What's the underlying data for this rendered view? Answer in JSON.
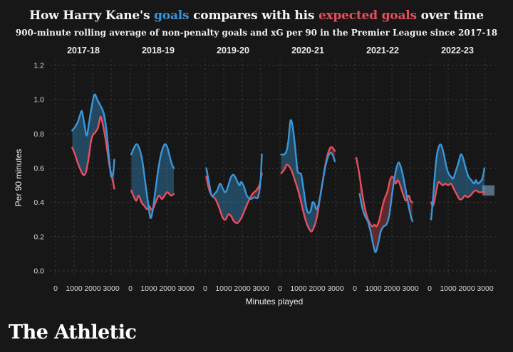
{
  "header": {
    "title_part1": "How Harry Kane's ",
    "title_goals_word": "goals",
    "title_part2": " compares with his ",
    "title_xg_word": "expected goals",
    "title_part3": " over time",
    "subtitle": "900-minute rolling average of non-penalty goals and xG per 90 in the Premier League since 2017-18"
  },
  "footer": {
    "logo_text": "The Athletic"
  },
  "colors": {
    "background": "#171717",
    "grid": "#3a3a3a",
    "goals_line": "#3a96d8",
    "xg_line": "#e84f5c",
    "goals_fill": "rgba(58,150,216,0.38)",
    "xg_fill": "rgba(232,79,92,0.34)",
    "tick_text": "#d9d9d9",
    "facet_text": "#eeeeee",
    "axis_title_text": "#f0f0f0"
  },
  "chart_data": {
    "type": "area",
    "title": "How Harry Kane's goals compares with his expected goals over time",
    "subtitle": "900-minute rolling average of non-penalty goals and xG per 90 in the Premier League since 2017-18",
    "xlabel": "Minutes played",
    "ylabel": "Per 90 minutes",
    "ylim": [
      0,
      1.2
    ],
    "y_ticks": [
      "1.2",
      "1.0",
      "0.8",
      "0.6",
      "0.4",
      "0.2",
      "0.0"
    ],
    "y_tick_values": [
      1.2,
      1.0,
      0.8,
      0.6,
      0.4,
      0.2,
      0.0
    ],
    "x_ticks": [
      "0",
      "1000",
      "2000",
      "3000"
    ],
    "x_tick_values": [
      0,
      1000,
      2000,
      3000
    ],
    "grid": "dashed",
    "series_legend": [
      {
        "name": "goals",
        "color": "#3a96d8"
      },
      {
        "name": "expected goals (xG)",
        "color": "#e84f5c"
      }
    ],
    "facets": [
      {
        "season": "2017-18",
        "goals": [
          [
            900,
            0.82
          ],
          [
            1050,
            0.84
          ],
          [
            1200,
            0.87
          ],
          [
            1350,
            0.92
          ],
          [
            1430,
            0.93
          ],
          [
            1550,
            0.86
          ],
          [
            1680,
            0.79
          ],
          [
            1800,
            0.86
          ],
          [
            1950,
            0.96
          ],
          [
            2100,
            1.03
          ],
          [
            2250,
            1.0
          ],
          [
            2400,
            0.97
          ],
          [
            2600,
            0.92
          ],
          [
            2750,
            0.82
          ],
          [
            2870,
            0.68
          ],
          [
            2970,
            0.57
          ],
          [
            3040,
            0.55
          ],
          [
            3120,
            0.58
          ],
          [
            3170,
            0.65
          ]
        ],
        "xg": [
          [
            900,
            0.72
          ],
          [
            1050,
            0.68
          ],
          [
            1200,
            0.63
          ],
          [
            1350,
            0.59
          ],
          [
            1500,
            0.56
          ],
          [
            1650,
            0.58
          ],
          [
            1800,
            0.67
          ],
          [
            1900,
            0.75
          ],
          [
            2000,
            0.79
          ],
          [
            2150,
            0.81
          ],
          [
            2300,
            0.84
          ],
          [
            2420,
            0.9
          ],
          [
            2520,
            0.87
          ],
          [
            2650,
            0.8
          ],
          [
            2780,
            0.71
          ],
          [
            2900,
            0.62
          ],
          [
            3000,
            0.57
          ],
          [
            3100,
            0.52
          ],
          [
            3170,
            0.48
          ]
        ]
      },
      {
        "season": "2018-19",
        "goals": [
          [
            50,
            0.68
          ],
          [
            200,
            0.72
          ],
          [
            350,
            0.74
          ],
          [
            500,
            0.71
          ],
          [
            650,
            0.64
          ],
          [
            800,
            0.52
          ],
          [
            950,
            0.4
          ],
          [
            1080,
            0.31
          ],
          [
            1200,
            0.35
          ],
          [
            1350,
            0.47
          ],
          [
            1500,
            0.59
          ],
          [
            1650,
            0.68
          ],
          [
            1800,
            0.73
          ],
          [
            1900,
            0.74
          ],
          [
            2000,
            0.72
          ],
          [
            2120,
            0.67
          ],
          [
            2250,
            0.62
          ],
          [
            2350,
            0.6
          ]
        ],
        "xg": [
          [
            50,
            0.47
          ],
          [
            200,
            0.43
          ],
          [
            320,
            0.41
          ],
          [
            450,
            0.44
          ],
          [
            600,
            0.4
          ],
          [
            750,
            0.38
          ],
          [
            900,
            0.36
          ],
          [
            1020,
            0.38
          ],
          [
            1120,
            0.36
          ],
          [
            1250,
            0.37
          ],
          [
            1400,
            0.41
          ],
          [
            1550,
            0.44
          ],
          [
            1700,
            0.42
          ],
          [
            1850,
            0.44
          ],
          [
            2000,
            0.46
          ],
          [
            2180,
            0.44
          ],
          [
            2350,
            0.45
          ]
        ]
      },
      {
        "season": "2019-20",
        "goals": [
          [
            60,
            0.6
          ],
          [
            200,
            0.52
          ],
          [
            350,
            0.44
          ],
          [
            500,
            0.45
          ],
          [
            650,
            0.47
          ],
          [
            800,
            0.51
          ],
          [
            950,
            0.48
          ],
          [
            1100,
            0.46
          ],
          [
            1250,
            0.5
          ],
          [
            1400,
            0.55
          ],
          [
            1550,
            0.56
          ],
          [
            1700,
            0.53
          ],
          [
            1850,
            0.5
          ],
          [
            1950,
            0.52
          ],
          [
            2100,
            0.49
          ],
          [
            2250,
            0.44
          ],
          [
            2450,
            0.42
          ],
          [
            2650,
            0.43
          ],
          [
            2850,
            0.43
          ],
          [
            2980,
            0.52
          ],
          [
            3060,
            0.68
          ]
        ],
        "xg": [
          [
            60,
            0.55
          ],
          [
            200,
            0.48
          ],
          [
            350,
            0.44
          ],
          [
            550,
            0.42
          ],
          [
            750,
            0.37
          ],
          [
            950,
            0.31
          ],
          [
            1100,
            0.3
          ],
          [
            1250,
            0.33
          ],
          [
            1400,
            0.32
          ],
          [
            1550,
            0.29
          ],
          [
            1750,
            0.28
          ],
          [
            1950,
            0.31
          ],
          [
            2150,
            0.36
          ],
          [
            2350,
            0.41
          ],
          [
            2550,
            0.45
          ],
          [
            2750,
            0.47
          ],
          [
            2920,
            0.5
          ],
          [
            3060,
            0.57
          ]
        ]
      },
      {
        "season": "2020-21",
        "goals": [
          [
            60,
            0.68
          ],
          [
            220,
            0.68
          ],
          [
            350,
            0.7
          ],
          [
            450,
            0.76
          ],
          [
            540,
            0.86
          ],
          [
            600,
            0.88
          ],
          [
            700,
            0.83
          ],
          [
            800,
            0.74
          ],
          [
            880,
            0.65
          ],
          [
            950,
            0.58
          ],
          [
            1050,
            0.57
          ],
          [
            1150,
            0.56
          ],
          [
            1280,
            0.47
          ],
          [
            1400,
            0.38
          ],
          [
            1520,
            0.34
          ],
          [
            1650,
            0.35
          ],
          [
            1760,
            0.4
          ],
          [
            1870,
            0.39
          ],
          [
            1960,
            0.36
          ],
          [
            2060,
            0.38
          ],
          [
            2160,
            0.43
          ],
          [
            2300,
            0.52
          ],
          [
            2450,
            0.61
          ],
          [
            2600,
            0.67
          ],
          [
            2750,
            0.69
          ],
          [
            2870,
            0.67
          ],
          [
            2960,
            0.64
          ]
        ],
        "xg": [
          [
            60,
            0.57
          ],
          [
            220,
            0.59
          ],
          [
            360,
            0.62
          ],
          [
            500,
            0.61
          ],
          [
            650,
            0.58
          ],
          [
            800,
            0.53
          ],
          [
            950,
            0.48
          ],
          [
            1100,
            0.42
          ],
          [
            1250,
            0.35
          ],
          [
            1400,
            0.29
          ],
          [
            1550,
            0.25
          ],
          [
            1700,
            0.23
          ],
          [
            1850,
            0.26
          ],
          [
            2000,
            0.32
          ],
          [
            2150,
            0.42
          ],
          [
            2300,
            0.52
          ],
          [
            2450,
            0.62
          ],
          [
            2600,
            0.69
          ],
          [
            2720,
            0.72
          ],
          [
            2830,
            0.72
          ],
          [
            2960,
            0.7
          ]
        ]
      },
      {
        "season": "2021-22",
        "goals": [
          [
            260,
            0.45
          ],
          [
            400,
            0.37
          ],
          [
            550,
            0.32
          ],
          [
            700,
            0.29
          ],
          [
            850,
            0.23
          ],
          [
            1000,
            0.15
          ],
          [
            1130,
            0.11
          ],
          [
            1280,
            0.17
          ],
          [
            1400,
            0.23
          ],
          [
            1550,
            0.26
          ],
          [
            1700,
            0.27
          ],
          [
            1850,
            0.32
          ],
          [
            2000,
            0.44
          ],
          [
            2150,
            0.55
          ],
          [
            2300,
            0.62
          ],
          [
            2400,
            0.63
          ],
          [
            2550,
            0.58
          ],
          [
            2700,
            0.5
          ],
          [
            2850,
            0.41
          ],
          [
            3000,
            0.33
          ],
          [
            3110,
            0.29
          ]
        ],
        "xg": [
          [
            80,
            0.66
          ],
          [
            220,
            0.58
          ],
          [
            360,
            0.48
          ],
          [
            500,
            0.39
          ],
          [
            650,
            0.32
          ],
          [
            800,
            0.28
          ],
          [
            950,
            0.26
          ],
          [
            1060,
            0.27
          ],
          [
            1160,
            0.26
          ],
          [
            1300,
            0.29
          ],
          [
            1450,
            0.36
          ],
          [
            1600,
            0.42
          ],
          [
            1750,
            0.46
          ],
          [
            1900,
            0.53
          ],
          [
            2000,
            0.55
          ],
          [
            2100,
            0.54
          ],
          [
            2200,
            0.51
          ],
          [
            2320,
            0.53
          ],
          [
            2450,
            0.5
          ],
          [
            2600,
            0.45
          ],
          [
            2750,
            0.41
          ],
          [
            2900,
            0.44
          ],
          [
            3010,
            0.41
          ],
          [
            3110,
            0.4
          ]
        ]
      },
      {
        "season": "2022-23",
        "goals": [
          [
            80,
            0.3
          ],
          [
            180,
            0.42
          ],
          [
            280,
            0.56
          ],
          [
            380,
            0.67
          ],
          [
            480,
            0.72
          ],
          [
            580,
            0.74
          ],
          [
            680,
            0.72
          ],
          [
            790,
            0.67
          ],
          [
            900,
            0.61
          ],
          [
            1020,
            0.57
          ],
          [
            1150,
            0.55
          ],
          [
            1270,
            0.54
          ],
          [
            1400,
            0.58
          ],
          [
            1550,
            0.63
          ],
          [
            1680,
            0.68
          ],
          [
            1800,
            0.66
          ],
          [
            1950,
            0.6
          ],
          [
            2100,
            0.55
          ],
          [
            2250,
            0.53
          ],
          [
            2400,
            0.51
          ],
          [
            2500,
            0.53
          ],
          [
            2600,
            0.51
          ],
          [
            2720,
            0.52
          ],
          [
            2850,
            0.54
          ],
          [
            2960,
            0.6
          ]
        ],
        "xg": [
          [
            80,
            0.4
          ],
          [
            180,
            0.38
          ],
          [
            280,
            0.42
          ],
          [
            380,
            0.48
          ],
          [
            480,
            0.52
          ],
          [
            600,
            0.51
          ],
          [
            720,
            0.5
          ],
          [
            850,
            0.51
          ],
          [
            1000,
            0.5
          ],
          [
            1150,
            0.51
          ],
          [
            1300,
            0.48
          ],
          [
            1450,
            0.45
          ],
          [
            1600,
            0.42
          ],
          [
            1750,
            0.42
          ],
          [
            1900,
            0.44
          ],
          [
            2050,
            0.43
          ],
          [
            2200,
            0.44
          ],
          [
            2350,
            0.46
          ],
          [
            2500,
            0.47
          ],
          [
            2650,
            0.46
          ],
          [
            2800,
            0.46
          ],
          [
            2960,
            0.46
          ]
        ]
      }
    ],
    "annotations": [
      {
        "facet": "2022-23",
        "type": "highlight-box",
        "x_min": 2850,
        "x_max": 3500,
        "y_min": 0.44,
        "y_max": 0.5,
        "color": "rgba(141,183,217,0.55)"
      }
    ]
  }
}
